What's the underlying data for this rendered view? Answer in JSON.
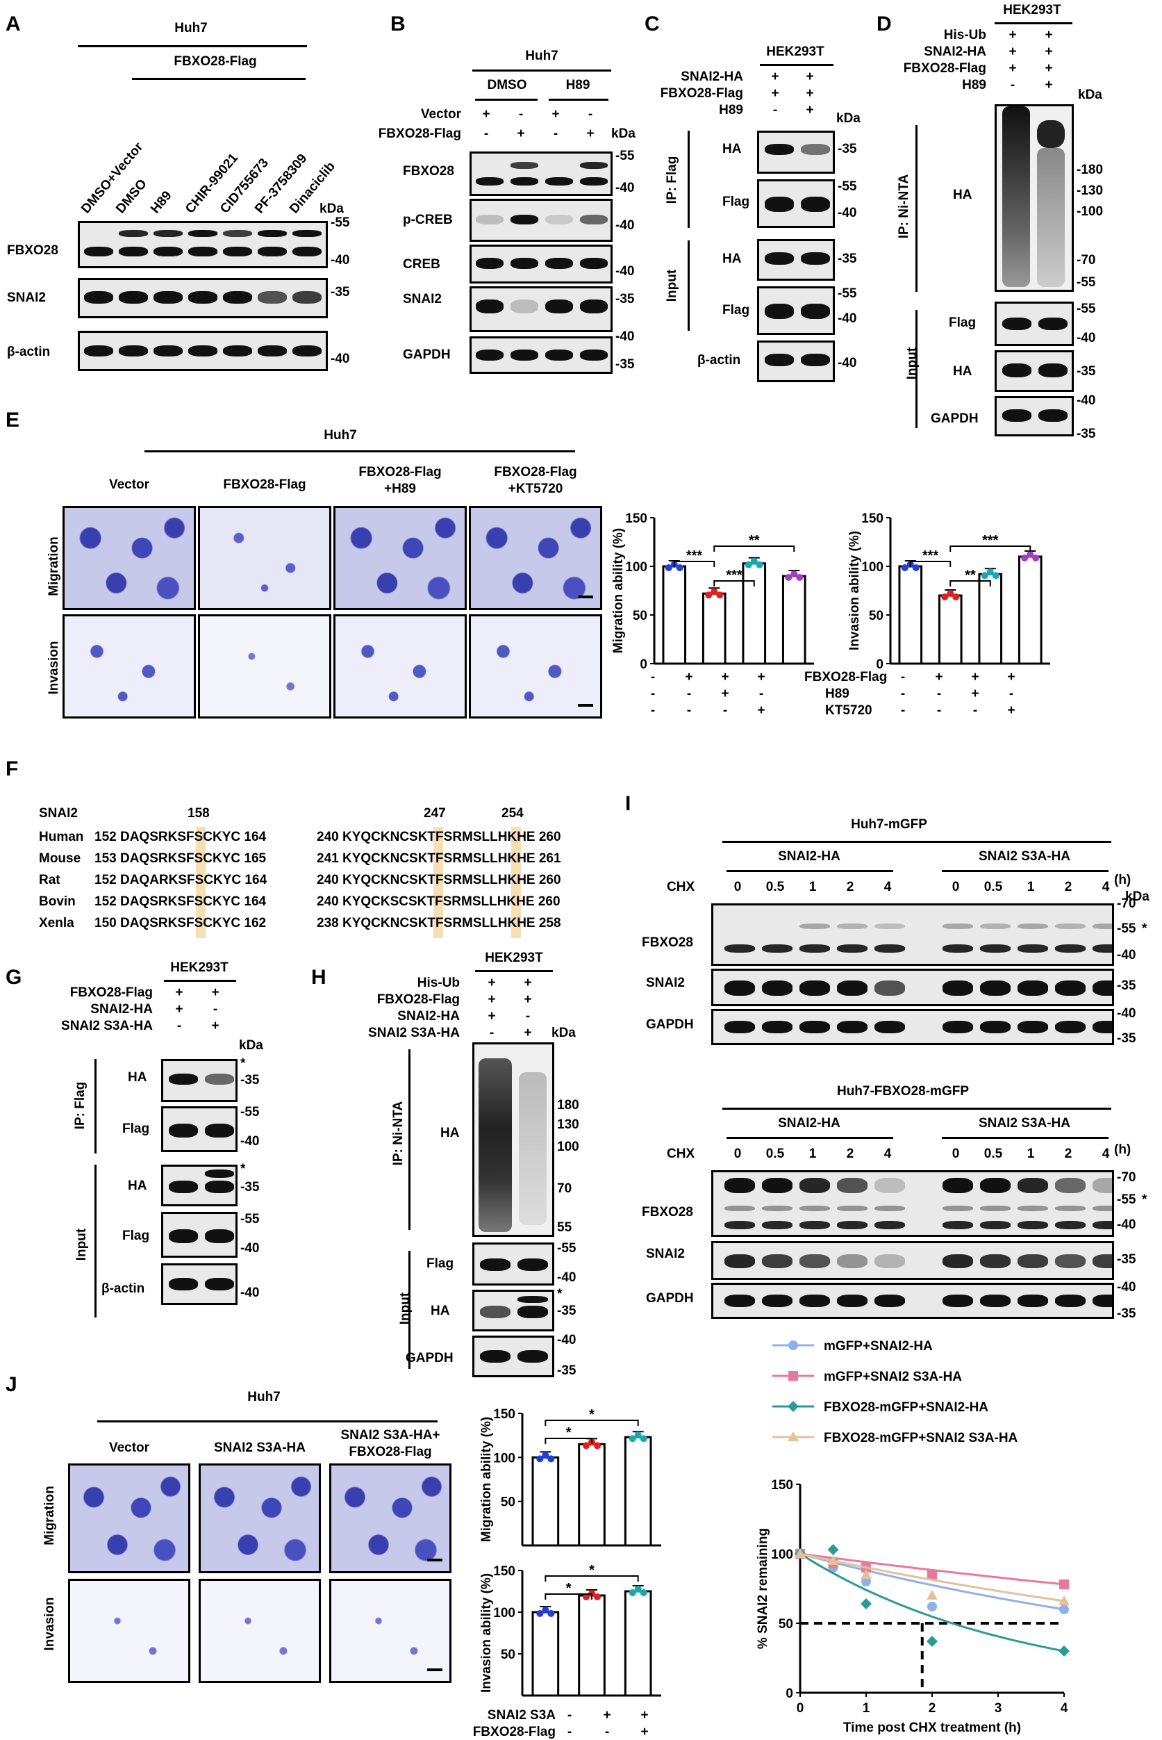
{
  "panels": {
    "A": {
      "letter": "A",
      "cell": "Huh7",
      "construct": "FBXO28-Flag",
      "lanes": [
        "DMSO+Vector",
        "DMSO",
        "H89",
        "CHIR-99021",
        "CID755673",
        "PF-3758309",
        "Dinaciclib"
      ],
      "kda": "kDa",
      "blots": [
        {
          "name": "FBXO28",
          "markers": [
            "-55",
            "-40"
          ]
        },
        {
          "name": "SNAI2",
          "markers": [
            "-35"
          ]
        },
        {
          "name": "β-actin",
          "markers": [
            "-40"
          ]
        }
      ]
    },
    "B": {
      "letter": "B",
      "cell": "Huh7",
      "groups": [
        "DMSO",
        "H89"
      ],
      "rows": [
        {
          "label": "Vector",
          "signs": [
            "+",
            "-",
            "+",
            "-"
          ]
        },
        {
          "label": "FBXO28-Flag",
          "signs": [
            "-",
            "+",
            "-",
            "+"
          ]
        }
      ],
      "kda": "kDa",
      "blots": [
        {
          "name": "FBXO28",
          "markers": [
            "-55",
            "-40"
          ]
        },
        {
          "name": "p-CREB",
          "markers": [
            "-40"
          ]
        },
        {
          "name": "CREB",
          "markers": [
            "-40"
          ]
        },
        {
          "name": "SNAI2",
          "markers": [
            "-35",
            "-40"
          ]
        },
        {
          "name": "GAPDH",
          "markers": [
            "-35"
          ]
        }
      ]
    },
    "C": {
      "letter": "C",
      "cell": "HEK293T",
      "rows": [
        {
          "label": "SNAI2-HA",
          "signs": [
            "+",
            "+"
          ]
        },
        {
          "label": "FBXO28-Flag",
          "signs": [
            "+",
            "+"
          ]
        },
        {
          "label": "H89",
          "signs": [
            "-",
            "+"
          ]
        }
      ],
      "kda": "kDa",
      "ip": "IP: Flag",
      "input": "Input",
      "blots": [
        {
          "name": "HA",
          "markers": [
            "-35"
          ]
        },
        {
          "name": "Flag",
          "markers": [
            "-55",
            "-40"
          ]
        },
        {
          "name": "HA",
          "markers": [
            "-35"
          ]
        },
        {
          "name": "Flag",
          "markers": [
            "-55",
            "-40"
          ]
        },
        {
          "name": "β-actin",
          "markers": [
            "-40"
          ]
        }
      ]
    },
    "D": {
      "letter": "D",
      "cell": "HEK293T",
      "rows": [
        {
          "label": "His-Ub",
          "signs": [
            "+",
            "+"
          ]
        },
        {
          "label": "SNAI2-HA",
          "signs": [
            "+",
            "+"
          ]
        },
        {
          "label": "FBXO28-Flag",
          "signs": [
            "+",
            "+"
          ]
        },
        {
          "label": "H89",
          "signs": [
            "-",
            "+"
          ]
        }
      ],
      "kda": "kDa",
      "ip": "IP: Ni-NTA",
      "input": "Input",
      "ip_blot": "HA",
      "ip_markers": [
        "-180",
        "-130",
        "-100",
        "-70",
        "-55"
      ],
      "blots": [
        {
          "name": "Flag",
          "markers": [
            "-55",
            "-40"
          ]
        },
        {
          "name": "HA",
          "markers": [
            "-35"
          ]
        },
        {
          "name": "GAPDH",
          "markers": [
            "-40",
            "-35"
          ]
        }
      ]
    },
    "E": {
      "letter": "E",
      "cell": "Huh7",
      "conditions": [
        "Vector",
        "FBXO28-Flag",
        "FBXO28-Flag\n+H89",
        "FBXO28-Flag\n+KT5720"
      ],
      "rows": [
        "Migration",
        "Invasion"
      ],
      "treat_rows": [
        {
          "label": "FBXO28-Flag",
          "signs": [
            "-",
            "+",
            "+",
            "+"
          ]
        },
        {
          "label": "H89",
          "signs": [
            "-",
            "-",
            "+",
            "-"
          ]
        },
        {
          "label": "KT5720",
          "signs": [
            "-",
            "-",
            "-",
            "+"
          ]
        }
      ],
      "ticks": [
        "150",
        "100",
        "50",
        "0"
      ]
    },
    "F": {
      "letter": "F",
      "protein": "SNAI2",
      "positions": [
        "158",
        "247",
        "254"
      ],
      "alignment": [
        {
          "species": "Human",
          "seq1": "152 DAQSRKSFSCKYC 164",
          "seq2": "240 KYQCKNCSKTFSRMSLLHKHE 260"
        },
        {
          "species": "Mouse",
          "seq1": "153 DAQSRKSFSCKYC 165",
          "seq2": "241 KYQCKNCSKTFSRMSLLHKHE 261"
        },
        {
          "species": "Rat",
          "seq1": "152 DAQARKSFSCKYC 164",
          "seq2": "240 KYQCKNCSKTFSRMSLLHKHE 260"
        },
        {
          "species": "Bovin",
          "seq1": "152 DAQSRKSFSCKYC 164",
          "seq2": "240 KYQCKSCSKTFSRMSLLHKHE 260"
        },
        {
          "species": "Xenla",
          "seq1": "150 DAQSRKSFSCKYC 162",
          "seq2": "238 KYQCKNCSKTFSRMSLLHKHE 258"
        }
      ]
    },
    "G": {
      "letter": "G",
      "cell": "HEK293T",
      "rows": [
        {
          "label": "FBXO28-Flag",
          "signs": [
            "+",
            "+"
          ]
        },
        {
          "label": "SNAI2-HA",
          "signs": [
            "+",
            "-"
          ]
        },
        {
          "label": "SNAI2 S3A-HA",
          "signs": [
            "-",
            "+"
          ]
        }
      ],
      "kda": "kDa",
      "ip": "IP: Flag",
      "input": "Input",
      "star": "*",
      "blots": [
        {
          "name": "HA",
          "markers": [
            "-35"
          ]
        },
        {
          "name": "Flag",
          "markers": [
            "-55",
            "-40"
          ]
        },
        {
          "name": "HA",
          "markers": [
            "-35"
          ]
        },
        {
          "name": "Flag",
          "markers": [
            "-55",
            "-40"
          ]
        },
        {
          "name": "β-actin",
          "markers": [
            "-40"
          ]
        }
      ]
    },
    "H": {
      "letter": "H",
      "cell": "HEK293T",
      "rows": [
        {
          "label": "His-Ub",
          "signs": [
            "+",
            "+"
          ]
        },
        {
          "label": "FBXO28-Flag",
          "signs": [
            "+",
            "+"
          ]
        },
        {
          "label": "SNAI2-HA",
          "signs": [
            "+",
            "-"
          ]
        },
        {
          "label": "SNAI2 S3A-HA",
          "signs": [
            "-",
            "+"
          ]
        }
      ],
      "kda": "kDa",
      "ip": "IP: Ni-NTA",
      "input": "Input",
      "ip_blot": "HA",
      "star": "*",
      "ip_markers": [
        "180",
        "130",
        "100",
        "70",
        "55"
      ],
      "blots": [
        {
          "name": "Flag",
          "markers": [
            "-55",
            "-40"
          ]
        },
        {
          "name": "HA",
          "markers": [
            "-35"
          ]
        },
        {
          "name": "GAPDH",
          "markers": [
            "-40",
            "-35"
          ]
        }
      ]
    },
    "I": {
      "letter": "I",
      "top_title": "Huh7-mGFP",
      "bottom_title": "Huh7-FBXO28-mGFP",
      "groups": [
        "SNAI2-HA",
        "SNAI2 S3A-HA"
      ],
      "chx": "CHX",
      "times": [
        "0",
        "0.5",
        "1",
        "2",
        "4"
      ],
      "unit": "(h)",
      "kda": "kDa",
      "star": "*",
      "blots": [
        {
          "name": "FBXO28",
          "markers": [
            "-70",
            "-55",
            "-40"
          ]
        },
        {
          "name": "SNAI2",
          "markers": [
            "-35"
          ]
        },
        {
          "name": "GAPDH",
          "markers": [
            "-40",
            "-35"
          ]
        }
      ]
    },
    "J": {
      "letter": "J",
      "cell": "Huh7",
      "conditions": [
        "Vector",
        "SNAI2 S3A-HA",
        "SNAI2 S3A-HA+\nFBXO28-Flag"
      ],
      "rows": [
        "Migration",
        "Invasion"
      ],
      "treat_rows": [
        {
          "label": "SNAI2 S3A",
          "signs": [
            "-",
            "+",
            "+"
          ]
        },
        {
          "label": "FBXO28-Flag",
          "signs": [
            "-",
            "-",
            "+"
          ]
        }
      ],
      "ticks": [
        "150",
        "100",
        "50"
      ]
    }
  },
  "chart_data": [
    {
      "type": "bar",
      "panel": "E",
      "categories": [
        "Vector",
        "FBXO28-Flag",
        "FBXO28-Flag+H89",
        "FBXO28-Flag+KT5720"
      ],
      "values": [
        100,
        72,
        103,
        90
      ],
      "ylabel": "Migration ability (%)",
      "ylim": [
        0,
        150
      ],
      "significance": [
        "***",
        "***",
        "**"
      ]
    },
    {
      "type": "bar",
      "panel": "E",
      "categories": [
        "Vector",
        "FBXO28-Flag",
        "FBXO28-Flag+H89",
        "FBXO28-Flag+KT5720"
      ],
      "values": [
        100,
        70,
        92,
        110
      ],
      "ylabel": "Invasion ability (%)",
      "ylim": [
        0,
        150
      ],
      "significance": [
        "***",
        "**",
        "***"
      ]
    },
    {
      "type": "bar",
      "panel": "J",
      "categories": [
        "Vector",
        "SNAI2 S3A",
        "SNAI2 S3A+FBXO28-Flag"
      ],
      "values": [
        100,
        115,
        123
      ],
      "ylabel": "Migration ability (%)",
      "ylim": [
        0,
        150
      ],
      "significance": [
        "*",
        "*"
      ]
    },
    {
      "type": "bar",
      "panel": "J",
      "categories": [
        "Vector",
        "SNAI2 S3A",
        "SNAI2 S3A+FBXO28-Flag"
      ],
      "values": [
        100,
        120,
        125
      ],
      "ylabel": "Invasion ability (%)",
      "ylim": [
        0,
        150
      ],
      "significance": [
        "*",
        "*"
      ]
    },
    {
      "type": "line",
      "panel": "I",
      "xlabel": "Time post CHX treatment (h)",
      "ylabel": "% SNAI2 remaining",
      "x": [
        0,
        0.5,
        1,
        2,
        4
      ],
      "xlim": [
        0,
        4
      ],
      "ylim": [
        0,
        150
      ],
      "xticks": [
        "0",
        "1",
        "2",
        "3",
        "4"
      ],
      "yticks": [
        "0",
        "50",
        "100",
        "150"
      ],
      "halflife_x": 1.85,
      "series": [
        {
          "name": "mGFP+SNAI2-HA",
          "color": "#8fb0e8",
          "marker": "circle",
          "values": [
            100,
            90,
            80,
            62,
            60
          ]
        },
        {
          "name": "mGFP+SNAI2 S3A-HA",
          "color": "#e6799d",
          "marker": "square",
          "values": [
            100,
            93,
            90,
            85,
            78
          ]
        },
        {
          "name": "FBXO28-mGFP+SNAI2-HA",
          "color": "#2a9a94",
          "marker": "diamond",
          "values": [
            100,
            103,
            64,
            37,
            30
          ]
        },
        {
          "name": "FBXO28-mGFP+SNAI2 S3A-HA",
          "color": "#e2c29a",
          "marker": "triangle",
          "values": [
            100,
            95,
            85,
            70,
            66
          ]
        }
      ]
    }
  ]
}
